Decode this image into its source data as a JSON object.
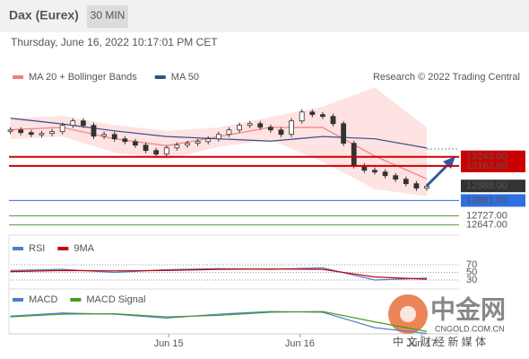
{
  "header": {
    "title": "Dax (Eurex)",
    "interval": "30 MIN",
    "date": "Thursday, June 16, 2022 10:17:01 PM CET"
  },
  "watermark": {
    "brand": "中金网",
    "site": "CNGOLD.COM.CN",
    "tagline": "中 文 财 经 新 媒 体"
  },
  "chart_data": [
    {
      "type": "candlestick",
      "credit": "Research © 2022 Trading Central",
      "xlim": [
        -1,
        43.1
      ],
      "ylim": [
        12550,
        13900
      ],
      "xticks": [
        {
          "value": 15.2,
          "label": "Jun 15"
        },
        {
          "value": 27.8,
          "label": "Jun 16"
        },
        {
          "value": 39.5,
          "label": "Jun 17"
        }
      ],
      "closes": [
        13478,
        13455,
        13439,
        13447,
        13463,
        13518,
        13557,
        13518,
        13423,
        13439,
        13400,
        13376,
        13345,
        13298,
        13267,
        13321,
        13345,
        13361,
        13376,
        13400,
        13439,
        13478,
        13518,
        13533,
        13502,
        13478,
        13439,
        13557,
        13635,
        13612,
        13596,
        13533,
        13361,
        13165,
        13125,
        13110,
        13078,
        13047,
        13008,
        12969,
        12984
      ],
      "series": [
        {
          "name": "MA 20 + Bollinger Bands",
          "color": "#f08080",
          "values": [
            13480,
            13500,
            13400,
            13340,
            13420,
            13500,
            13500,
            13250,
            13050
          ]
        },
        {
          "name": "MA 50",
          "color": "#34508a",
          "values": [
            13580,
            13530,
            13470,
            13420,
            13400,
            13380,
            13420,
            13400,
            13320
          ]
        }
      ],
      "bands": {
        "color": "#ffd6d6",
        "upper": [
          13580,
          13600,
          13520,
          13470,
          13500,
          13590,
          13680,
          13850,
          13500
        ],
        "lower": [
          13400,
          13420,
          13280,
          13220,
          13330,
          13390,
          13200,
          12960,
          12900
        ]
      },
      "levels": [
        {
          "value": 13243,
          "label": "13243.00",
          "color": "#cc0000",
          "box": true
        },
        {
          "value": 13163,
          "label": "13163.00",
          "color": "#cc0000",
          "box": true
        },
        {
          "value": 12988,
          "label": "12988.00",
          "color": "#333333",
          "box": true,
          "noline": true
        },
        {
          "value": 12861,
          "label": "12861.00",
          "color": "#2f6fe0",
          "box": true
        },
        {
          "value": 12727,
          "label": "12727.00",
          "color": "#5a9a3a",
          "box": false
        },
        {
          "value": 12647,
          "label": "12647.00",
          "color": "#5a9a3a",
          "box": false
        }
      ]
    },
    {
      "type": "line",
      "ylim": [
        20,
        80
      ],
      "yticks": [
        70,
        50,
        30
      ],
      "series": [
        {
          "name": "RSI",
          "color": "#4a7fd4",
          "values": [
            55,
            58,
            50,
            57,
            60,
            58,
            62,
            30,
            35
          ]
        },
        {
          "name": "9MA",
          "color": "#cc0000",
          "values": [
            52,
            55,
            54,
            55,
            58,
            59,
            58,
            38,
            32
          ]
        }
      ]
    },
    {
      "type": "line",
      "ylim": [
        -60,
        40
      ],
      "series": [
        {
          "name": "MACD",
          "color": "#4a7fd4",
          "values": [
            0,
            8,
            5,
            -5,
            5,
            12,
            10,
            -30,
            -45
          ]
        },
        {
          "name": "MACD Signal",
          "color": "#4a9a1a",
          "values": [
            -2,
            5,
            6,
            -2,
            2,
            10,
            12,
            -15,
            -40
          ]
        }
      ]
    }
  ]
}
